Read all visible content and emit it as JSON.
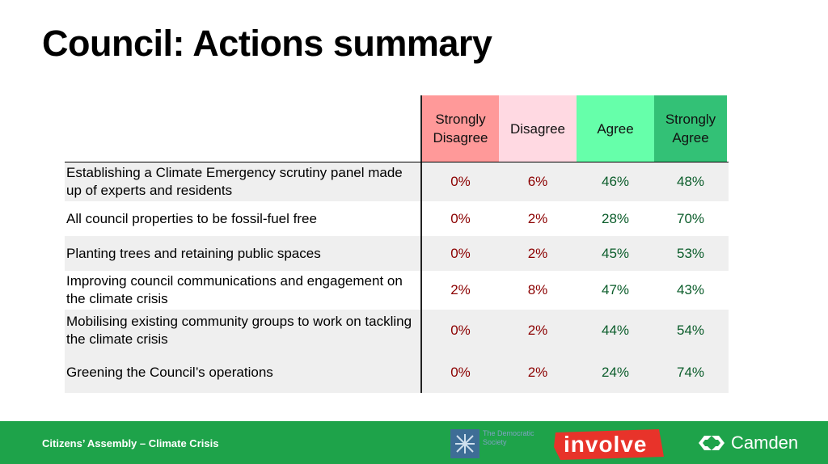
{
  "title": "Council: Actions summary",
  "table": {
    "headers": {
      "strongly_disagree": "Strongly Disagree",
      "disagree": "Disagree",
      "agree": "Agree",
      "strongly_agree": "Strongly Agree"
    },
    "rows": [
      {
        "label": "Establishing a Climate Emergency scrutiny panel made up of experts and residents",
        "sd": "0%",
        "d": "6%",
        "a": "46%",
        "sa": "48%"
      },
      {
        "label": "All council properties to be fossil-fuel free",
        "sd": "0%",
        "d": "2%",
        "a": "28%",
        "sa": "70%"
      },
      {
        "label": "Planting trees and retaining public spaces",
        "sd": "0%",
        "d": "2%",
        "a": "45%",
        "sa": "53%"
      },
      {
        "label": "Improving council communications and engagement on the climate crisis",
        "sd": "2%",
        "d": "8%",
        "a": "47%",
        "sa": "43%"
      },
      {
        "label": "Mobilising existing community groups to work on tackling the climate crisis",
        "sd": "0%",
        "d": "2%",
        "a": "44%",
        "sa": "54%"
      },
      {
        "label": "Greening the Council’s operations",
        "sd": "0%",
        "d": "2%",
        "a": "24%",
        "sa": "74%"
      }
    ]
  },
  "footer": {
    "text": "Citizens’ Assembly – Climate Crisis",
    "logos": {
      "democratic_society": "The Democratic Society",
      "involve": "involve",
      "camden": "Camden"
    }
  },
  "colors": {
    "strongly_disagree": "#ff9999",
    "disagree": "#ffd9e2",
    "agree": "#66ffaa",
    "strongly_agree": "#33c176",
    "footer": "#1ea34a",
    "involve": "#e8332a"
  }
}
